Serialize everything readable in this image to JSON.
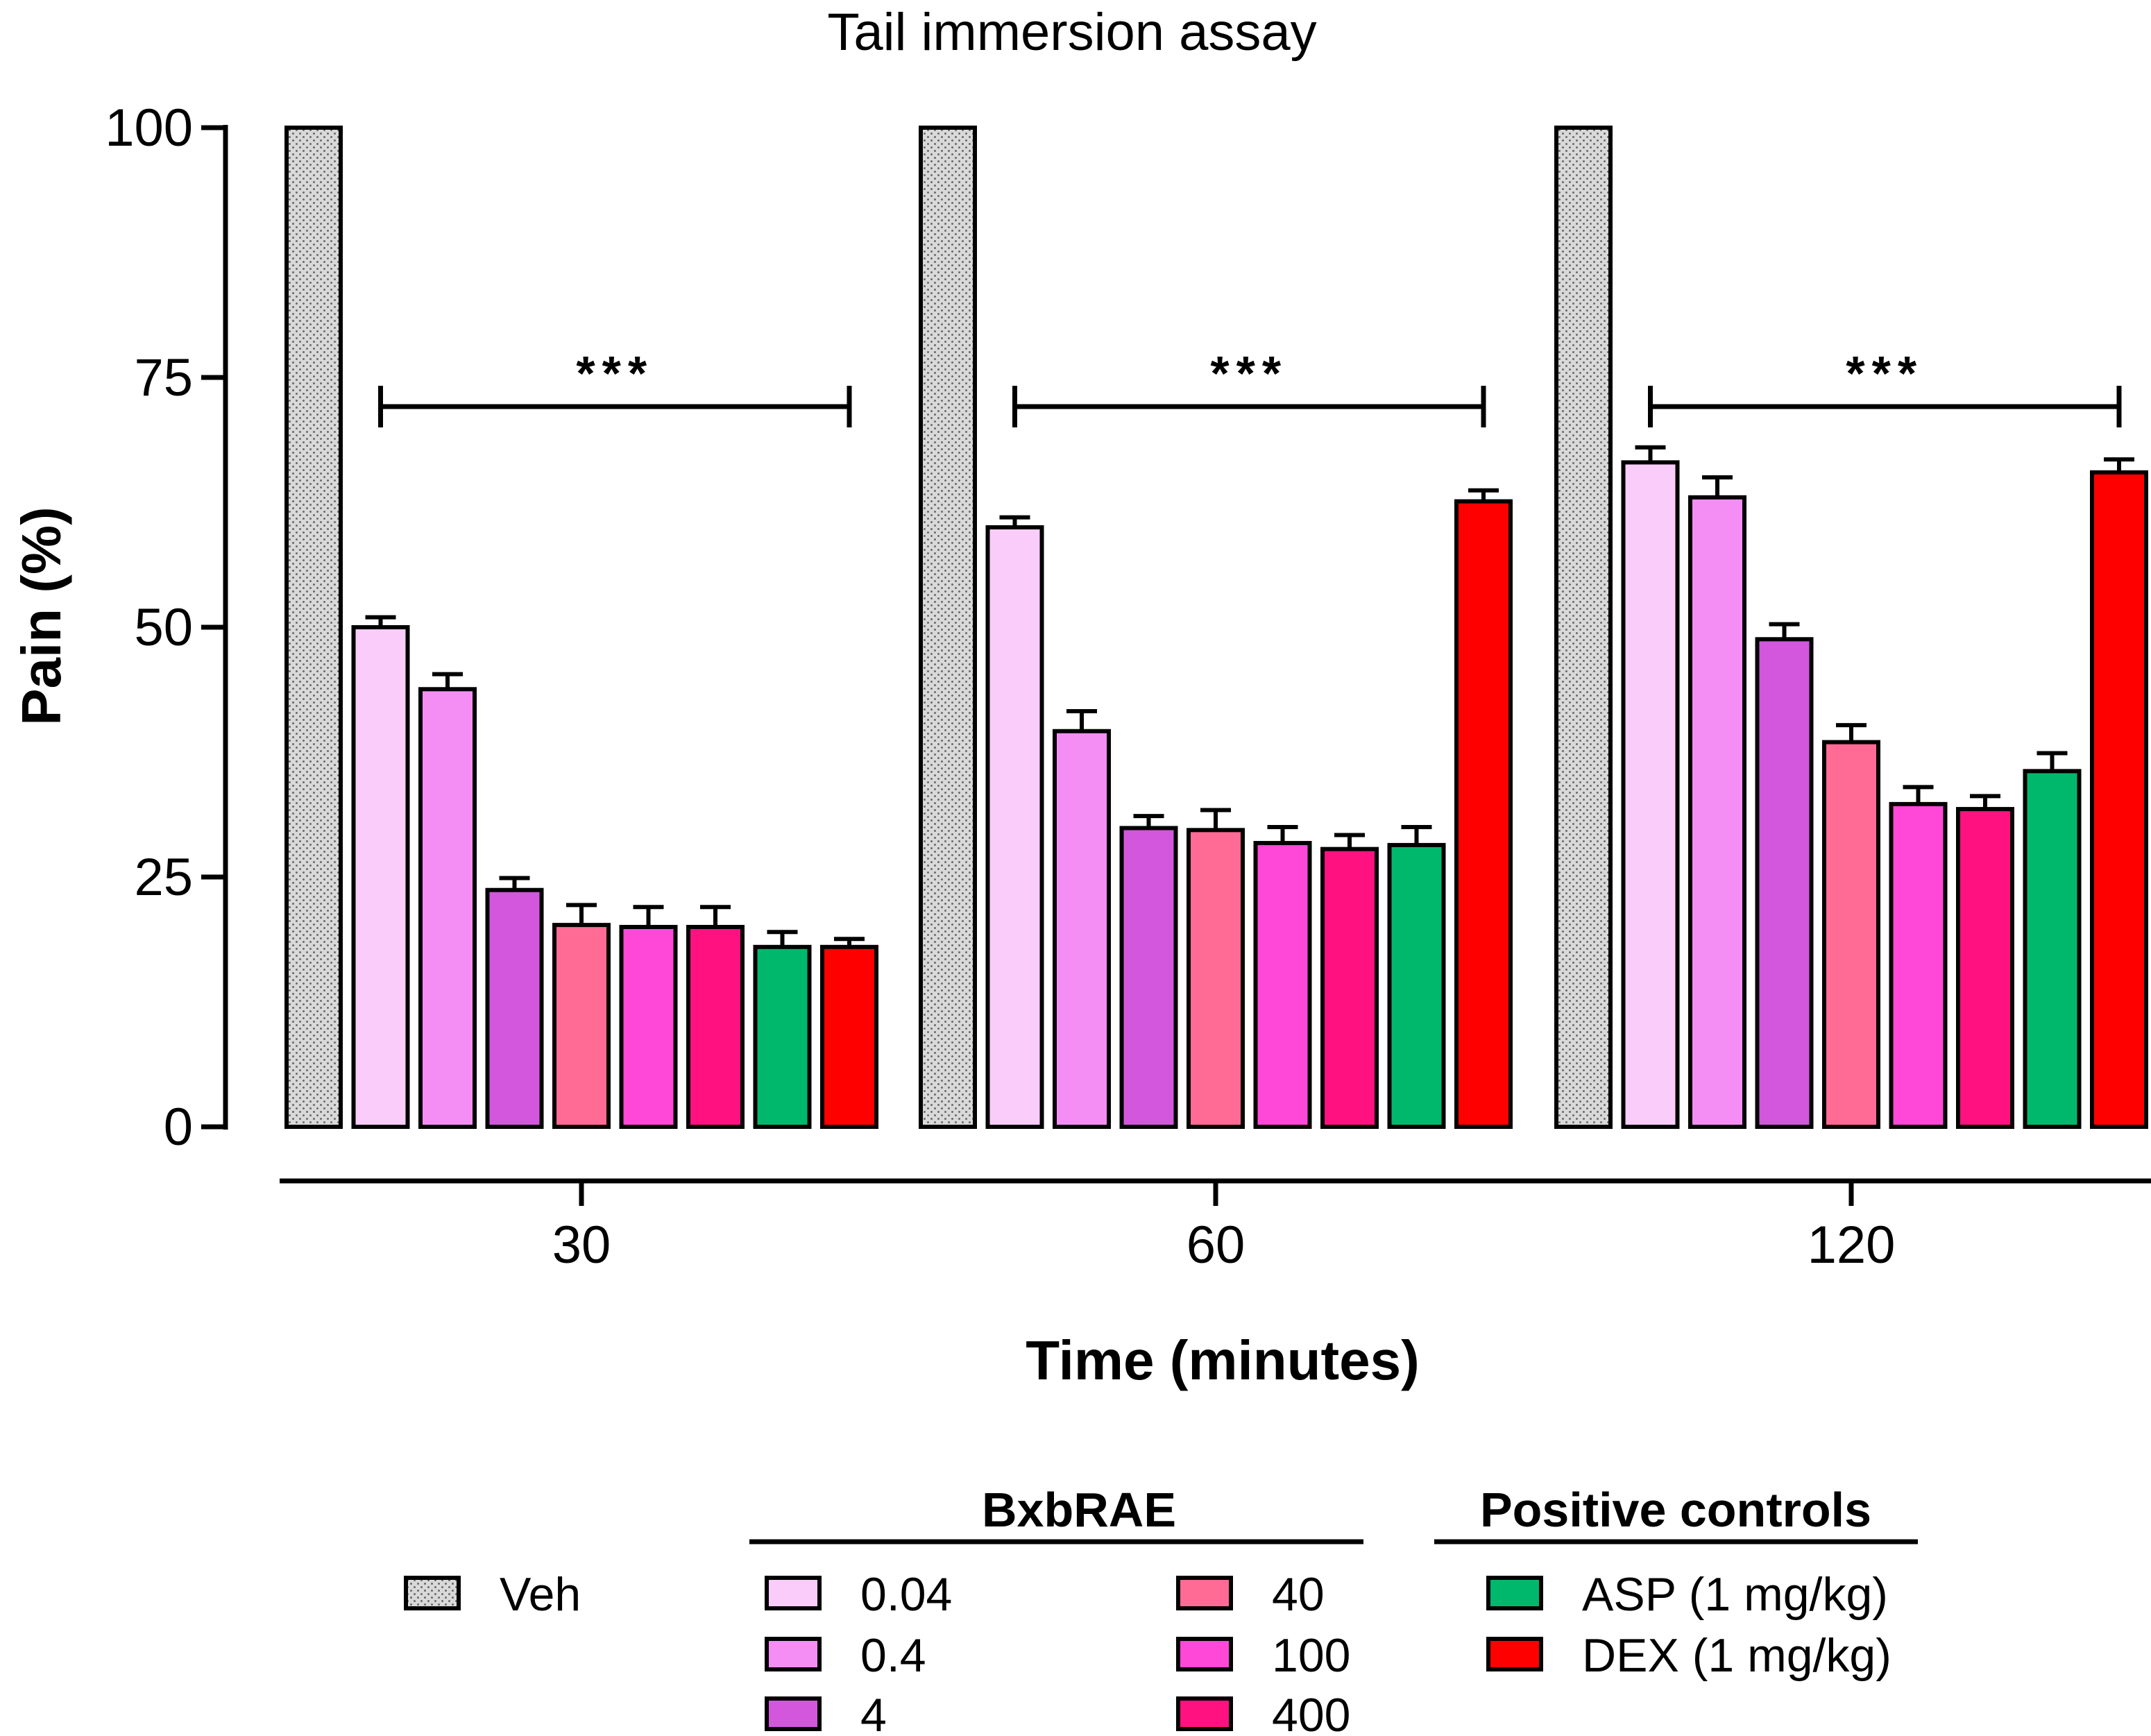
{
  "chart_data": {
    "type": "bar",
    "title": "Tail immersion assay",
    "xlabel": "Time (minutes)",
    "ylabel": "Pain (%)",
    "ylim": [
      0,
      100
    ],
    "yticks": [
      "0",
      "25",
      "50",
      "75",
      "100"
    ],
    "categories": [
      "30",
      "60",
      "120"
    ],
    "series": [
      {
        "name": "Veh",
        "color": "#d9d9d9",
        "pattern": "dots",
        "values": [
          100,
          100,
          100
        ],
        "errors": [
          0,
          0,
          0
        ]
      },
      {
        "name": "0.04",
        "color": "#f9ccf9",
        "values": [
          50,
          60,
          66.5
        ],
        "errors": [
          1,
          1,
          1.5
        ]
      },
      {
        "name": "0.4",
        "color": "#f48ef4",
        "values": [
          43.8,
          39.6,
          63
        ],
        "errors": [
          1.5,
          2,
          2
        ]
      },
      {
        "name": "4",
        "color": "#d257dc",
        "values": [
          23.7,
          29.9,
          48.8
        ],
        "errors": [
          1.2,
          1.2,
          1.5
        ]
      },
      {
        "name": "40",
        "color": "#ff6b94",
        "values": [
          20.2,
          29.7,
          38.5
        ],
        "errors": [
          2,
          2,
          1.7
        ]
      },
      {
        "name": "100",
        "color": "#ff48d8",
        "values": [
          20,
          28.4,
          32.3
        ],
        "errors": [
          2,
          1.6,
          1.7
        ]
      },
      {
        "name": "400",
        "color": "#ff1280",
        "values": [
          20,
          27.8,
          31.8
        ],
        "errors": [
          2,
          1.4,
          1.3
        ]
      },
      {
        "name": "ASP (1 mg/kg)",
        "color": "#00b86b",
        "values": [
          18,
          28.2,
          35.6
        ],
        "errors": [
          1.5,
          1.8,
          1.8
        ]
      },
      {
        "name": "DEX (1 mg/kg)",
        "color": "#ff0000",
        "values": [
          18,
          62.6,
          65.5
        ],
        "errors": [
          0.8,
          1.1,
          1.3
        ]
      }
    ],
    "significance": [
      "***",
      "***",
      "***"
    ],
    "legend": {
      "position": "bottom",
      "group_bxbrae": "BxbRAE",
      "group_controls": "Positive controls"
    }
  }
}
